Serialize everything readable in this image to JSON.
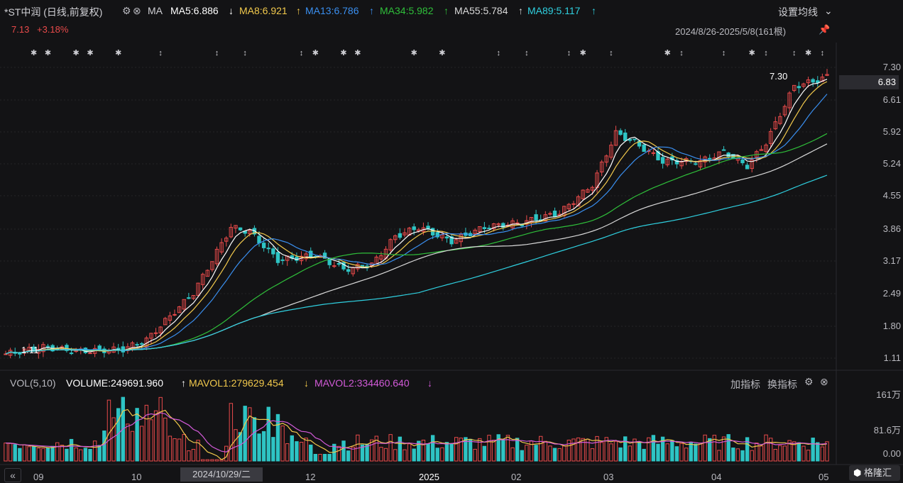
{
  "header": {
    "stock_name": "*ST中润 (日线,前复权)",
    "gear_icon": "gear-icon",
    "close_icon": "close-icon",
    "ma_label": "MA",
    "ma_items": [
      {
        "label": "MA5:6.886",
        "arrow": "↓",
        "color": "#ffffff"
      },
      {
        "label": "MA8:6.921",
        "arrow": "↑",
        "color": "#f2c94c"
      },
      {
        "label": "MA13:6.786",
        "arrow": "↑",
        "color": "#3a8ff0"
      },
      {
        "label": "MA34:5.982",
        "arrow": "↑",
        "color": "#2fbf3a"
      },
      {
        "label": "MA55:5.784",
        "arrow": "↑",
        "color": "#d9d9d9"
      },
      {
        "label": "MA89:5.117",
        "arrow": "↑",
        "color": "#2fd0e0"
      }
    ],
    "settings_label": "设置均线"
  },
  "subheader": {
    "price": "7.13",
    "change": "+3.18%",
    "range": "2024/8/26-2025/5/8(161根)"
  },
  "price_axis": [
    "7.30",
    "6.61",
    "5.92",
    "5.24",
    "4.55",
    "3.86",
    "3.17",
    "2.49",
    "1.80",
    "1.11"
  ],
  "current_price_tag": "6.83",
  "annotations": {
    "high": "7.30",
    "low": "1.11"
  },
  "volume_panel": {
    "title": "VOL(5,10)",
    "volume": "VOLUME:249691.960",
    "volume_arrow": "↑",
    "mavol1": "MAVOL1:279629.454",
    "mavol1_arrow": "↓",
    "mavol2": "MAVOL2:334460.640",
    "mavol2_arrow": "↓",
    "add_indicator": "加指标",
    "switch_indicator": "换指标",
    "axis": [
      "161万",
      "81.6万",
      "0.00"
    ]
  },
  "x_axis": [
    "09",
    "10",
    "12",
    "2025",
    "02",
    "03",
    "04",
    "05"
  ],
  "cursor_date": "2024/10/29/二",
  "logo": "格隆汇",
  "colors": {
    "up": "#e84a4a",
    "down": "#2ec4c4",
    "bg": "#131315"
  }
}
